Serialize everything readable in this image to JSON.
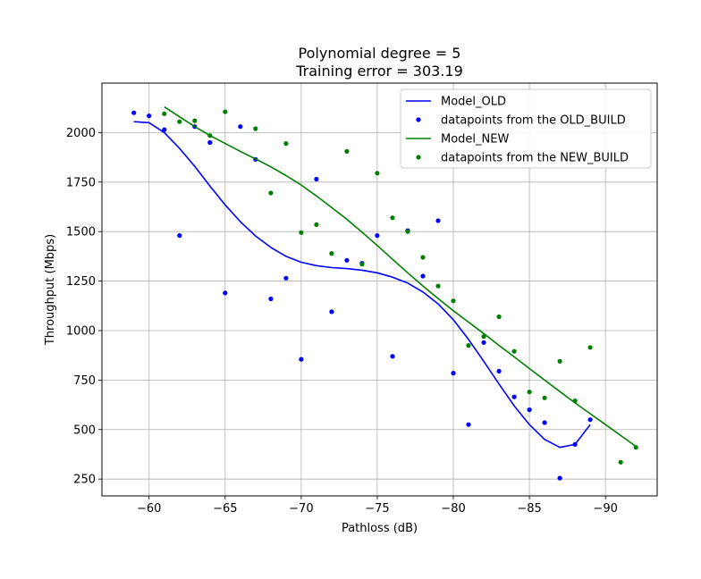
{
  "chart_data": {
    "type": "scatter",
    "title_line1": "Polynomial degree = 5",
    "title_line2": "Training error = 303.19",
    "xlabel": "Pathloss (dB)",
    "ylabel": "Throughput (Mbps)",
    "xlim": [
      -56.9,
      -93.4
    ],
    "ylim": [
      165,
      2250
    ],
    "x_ticks": [
      -60,
      -65,
      -70,
      -75,
      -80,
      -85,
      -90
    ],
    "x_tick_labels": [
      "−60",
      "−65",
      "−70",
      "−75",
      "−80",
      "−85",
      "−90"
    ],
    "y_ticks": [
      250,
      500,
      750,
      1000,
      1250,
      1500,
      1750,
      2000
    ],
    "y_tick_labels": [
      "250",
      "500",
      "750",
      "1000",
      "1250",
      "1500",
      "1750",
      "2000"
    ],
    "grid": true,
    "legend_position": "top-right",
    "series": [
      {
        "name": "Model_OLD",
        "kind": "line",
        "color": "#0000ff",
        "x": [
          -59,
          -60,
          -61,
          -62,
          -63,
          -64,
          -65,
          -66,
          -67,
          -68,
          -69,
          -70,
          -71,
          -72,
          -73,
          -74,
          -75,
          -76,
          -77,
          -78,
          -79,
          -80,
          -81,
          -82,
          -83,
          -84,
          -85,
          -86,
          -87,
          -88,
          -89
        ],
        "y": [
          2055,
          2050,
          2000,
          1920,
          1830,
          1730,
          1635,
          1550,
          1478,
          1420,
          1375,
          1345,
          1328,
          1318,
          1313,
          1305,
          1292,
          1270,
          1240,
          1195,
          1135,
          1055,
          955,
          845,
          730,
          620,
          525,
          450,
          410,
          425,
          525
        ]
      },
      {
        "name": "datapoints from the OLD_BUILD",
        "kind": "scatter",
        "color": "#0000ff",
        "x": [
          -59,
          -60,
          -61,
          -62,
          -63,
          -64,
          -65,
          -66,
          -67,
          -68,
          -69,
          -70,
          -71,
          -72,
          -73,
          -74,
          -75,
          -76,
          -77,
          -78,
          -79,
          -80,
          -81,
          -82,
          -83,
          -84,
          -85,
          -86,
          -87,
          -88,
          -89
        ],
        "y": [
          2100,
          2085,
          2015,
          1480,
          2030,
          1950,
          1190,
          2030,
          1865,
          1160,
          1265,
          855,
          1765,
          1095,
          1355,
          1340,
          1480,
          870,
          1505,
          1275,
          1555,
          785,
          525,
          940,
          795,
          665,
          600,
          535,
          255,
          425,
          550
        ]
      },
      {
        "name": "Model_NEW",
        "kind": "line",
        "color": "#008000",
        "x": [
          -61,
          -62,
          -63,
          -64,
          -65,
          -66,
          -67,
          -68,
          -69,
          -70,
          -71,
          -72,
          -73,
          -74,
          -75,
          -76,
          -77,
          -78,
          -79,
          -80,
          -81,
          -82,
          -83,
          -84,
          -85,
          -86,
          -87,
          -88,
          -89,
          -90,
          -91,
          -92
        ],
        "y": [
          2130,
          2080,
          2030,
          1985,
          1945,
          1905,
          1867,
          1827,
          1783,
          1735,
          1680,
          1622,
          1562,
          1497,
          1430,
          1360,
          1292,
          1225,
          1162,
          1100,
          1043,
          985,
          925,
          867,
          808,
          750,
          692,
          635,
          580,
          525,
          470,
          415
        ]
      },
      {
        "name": "datapoints from the NEW_BUILD",
        "kind": "scatter",
        "color": "#008000",
        "x": [
          -61,
          -62,
          -63,
          -64,
          -65,
          -67,
          -68,
          -69,
          -70,
          -71,
          -72,
          -73,
          -74,
          -75,
          -76,
          -77,
          -78,
          -79,
          -80,
          -81,
          -82,
          -83,
          -84,
          -85,
          -86,
          -87,
          -88,
          -89,
          -91,
          -92
        ],
        "y": [
          2095,
          2055,
          2060,
          1985,
          2105,
          2020,
          1695,
          1945,
          1495,
          1535,
          1390,
          1905,
          1335,
          1795,
          1570,
          1500,
          1370,
          1225,
          1150,
          925,
          970,
          1070,
          895,
          690,
          660,
          845,
          645,
          915,
          335,
          410
        ]
      }
    ]
  }
}
